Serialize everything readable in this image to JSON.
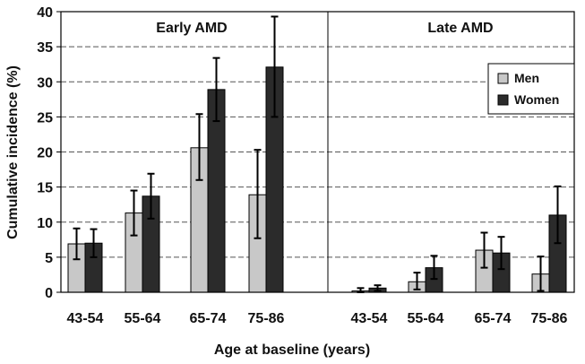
{
  "chart_data": {
    "type": "bar",
    "ylabel": "Cumulative incidence (%)",
    "xlabel": "Age at baseline (years)",
    "ylim": [
      0,
      40
    ],
    "yticks": [
      "0",
      "5",
      "10",
      "15",
      "20",
      "25",
      "30",
      "35",
      "40"
    ],
    "grid": true,
    "legend_position": "top-right",
    "panels": [
      {
        "title": "Early AMD",
        "categories": [
          "43-54",
          "55-64",
          "65-74",
          "75-86"
        ],
        "series": [
          {
            "name": "Men",
            "color": "#c8c8c8",
            "values": [
              6.9,
              11.3,
              20.6,
              13.9
            ],
            "err_low": [
              4.7,
              8.1,
              16.0,
              7.7
            ],
            "err_high": [
              9.1,
              14.5,
              25.4,
              20.3
            ]
          },
          {
            "name": "Women",
            "color": "#2b2b2b",
            "values": [
              7.0,
              13.7,
              28.9,
              32.1
            ],
            "err_low": [
              5.0,
              10.5,
              24.4,
              25.0
            ],
            "err_high": [
              9.0,
              16.9,
              33.4,
              39.3
            ]
          }
        ]
      },
      {
        "title": "Late AMD",
        "categories": [
          "43-54",
          "55-64",
          "65-74",
          "75-86"
        ],
        "series": [
          {
            "name": "Men",
            "color": "#c8c8c8",
            "values": [
              0.2,
              1.5,
              6.0,
              2.6
            ],
            "err_low": [
              0.0,
              0.4,
              3.5,
              0.2
            ],
            "err_high": [
              0.6,
              2.8,
              8.5,
              5.1
            ]
          },
          {
            "name": "Women",
            "color": "#2b2b2b",
            "values": [
              0.6,
              3.5,
              5.6,
              11.0
            ],
            "err_low": [
              0.2,
              1.9,
              3.3,
              7.0
            ],
            "err_high": [
              1.0,
              5.2,
              7.9,
              15.1
            ]
          }
        ]
      }
    ]
  }
}
